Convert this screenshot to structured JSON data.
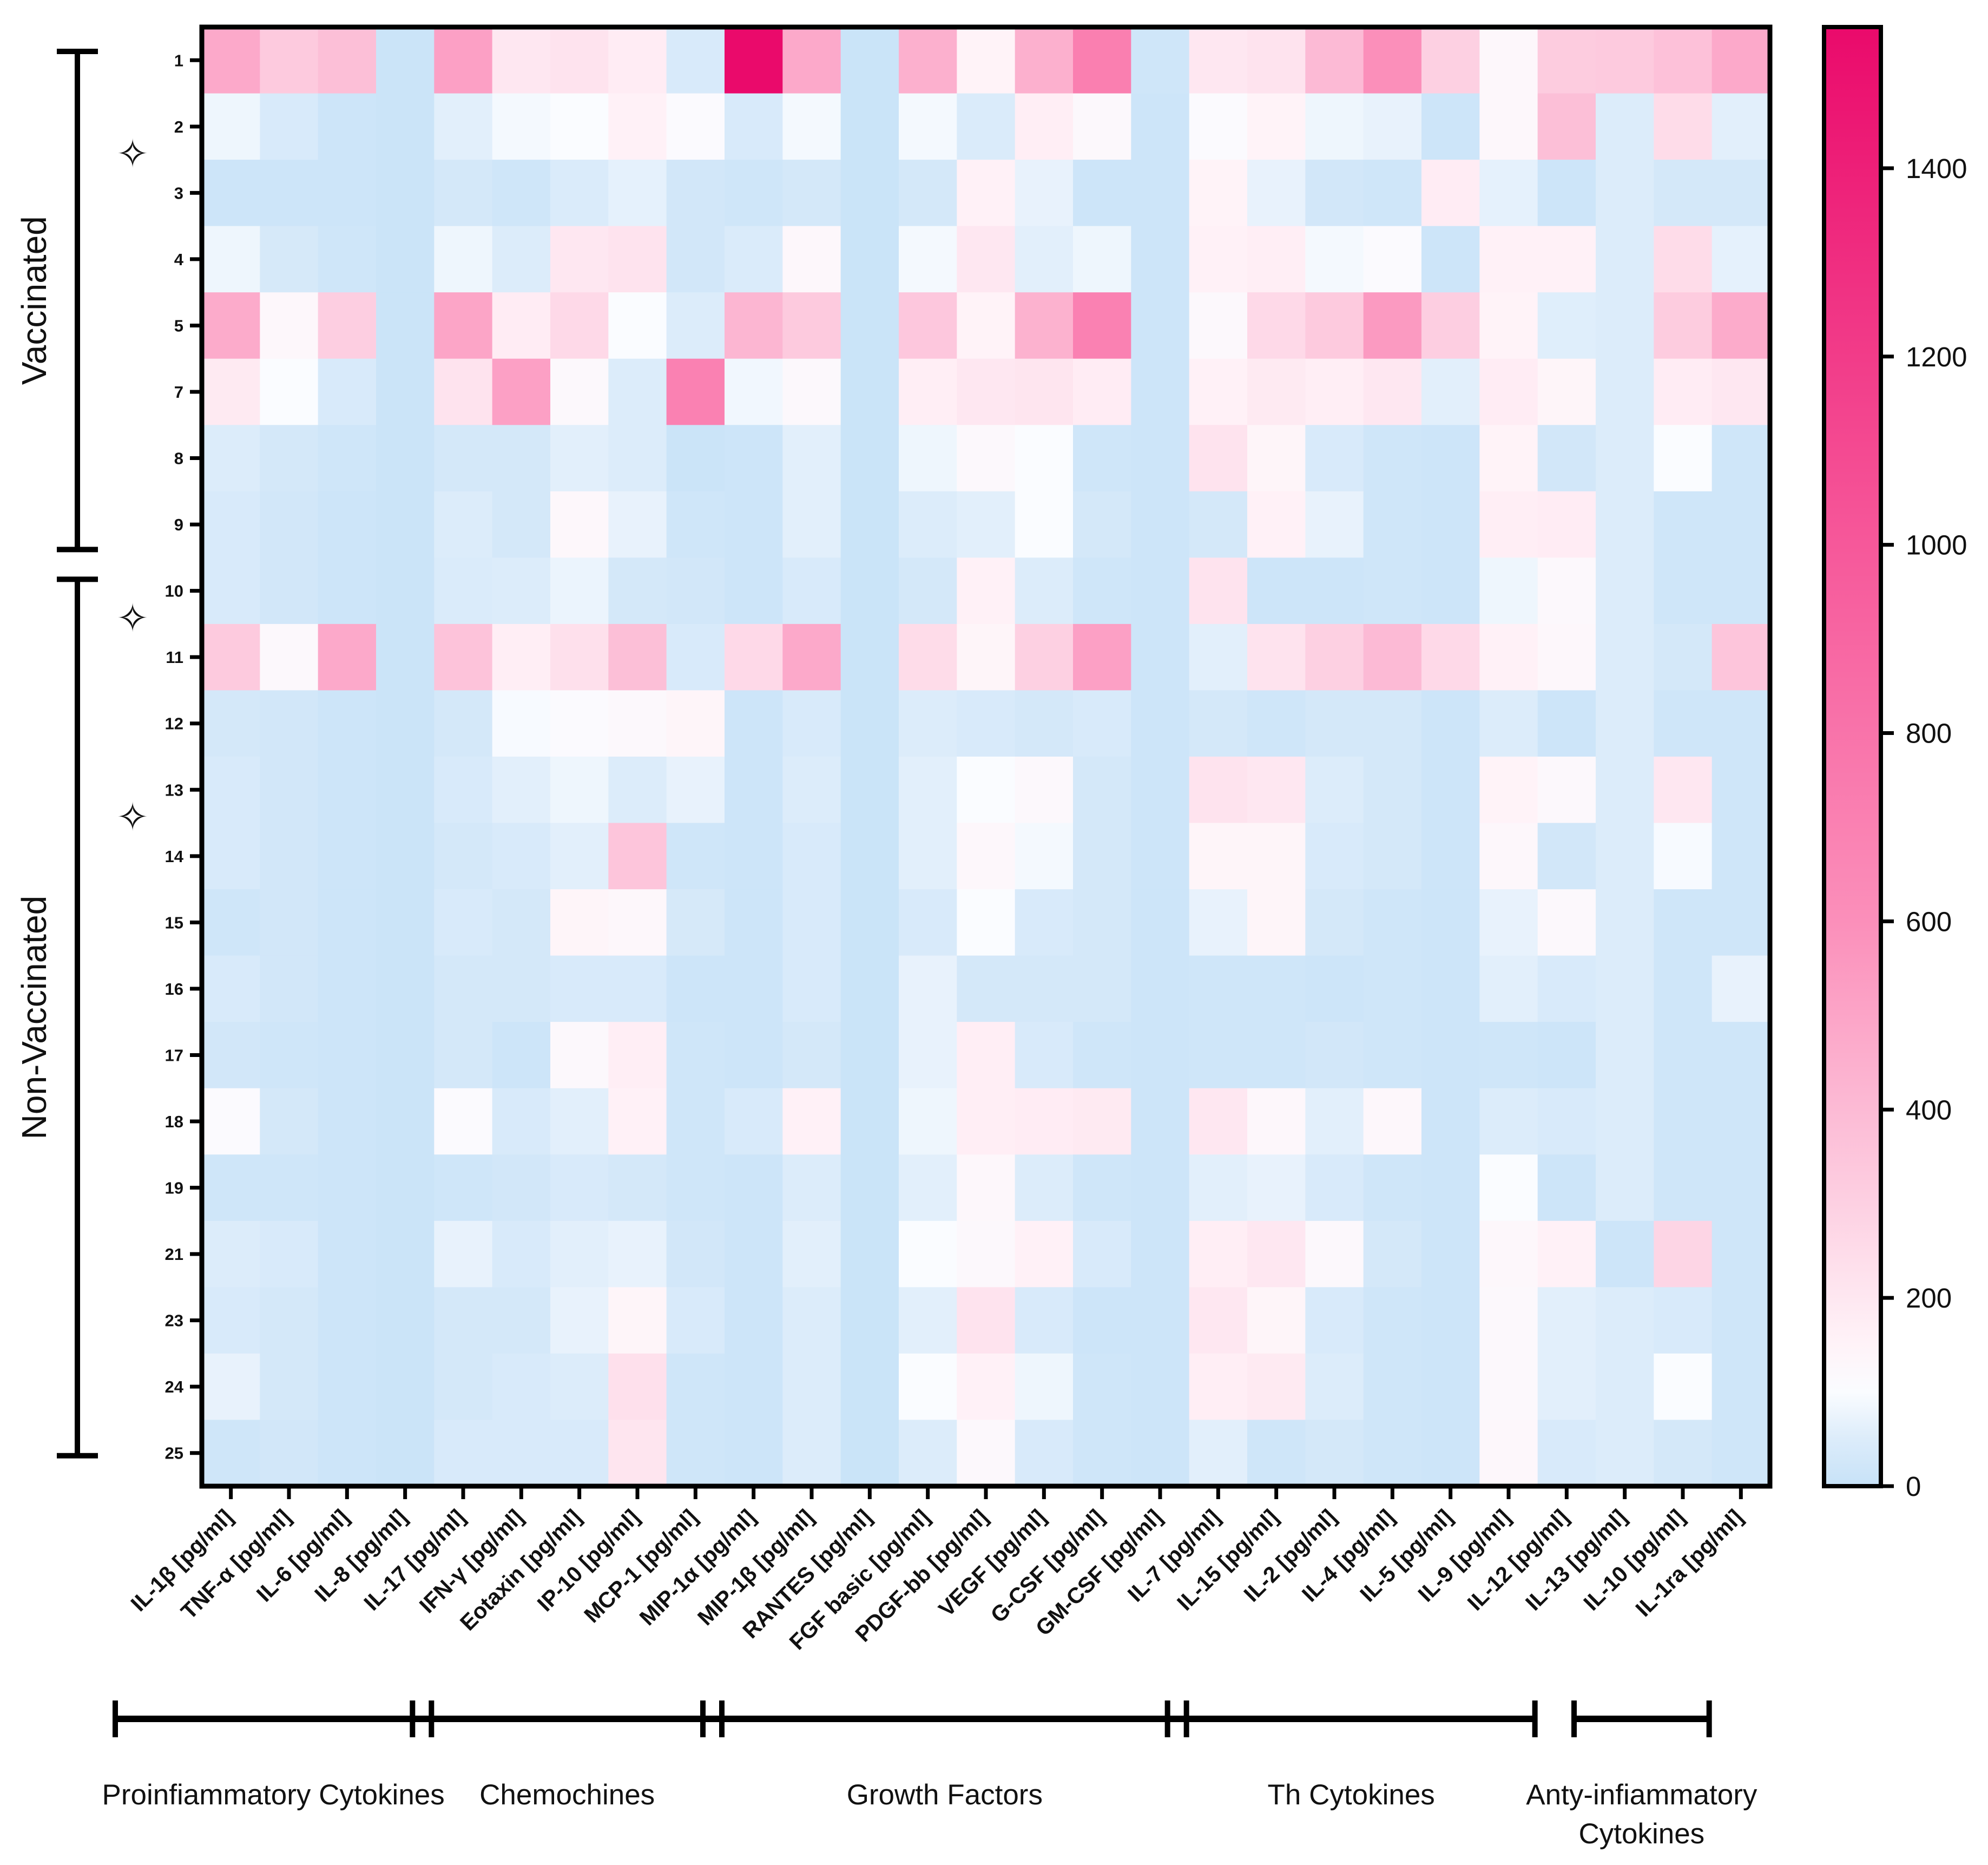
{
  "chart_data": {
    "type": "heatmap",
    "colorbar": {
      "min": 0,
      "max": 1550,
      "ticks": [
        0,
        200,
        400,
        600,
        800,
        1000,
        1200,
        1400
      ],
      "tick_labels": [
        "0",
        "200",
        "400",
        "600",
        "800",
        "1000",
        "1200",
        "1400"
      ],
      "stops": [
        {
          "v": 0,
          "c": "#c7e2f8"
        },
        {
          "v": 50,
          "c": "#dcecfa"
        },
        {
          "v": 100,
          "c": "#fafcff"
        },
        {
          "v": 150,
          "c": "#fff3f8"
        },
        {
          "v": 300,
          "c": "#fdd0e2"
        },
        {
          "v": 600,
          "c": "#fb8fba"
        },
        {
          "v": 1000,
          "c": "#f6589a"
        },
        {
          "v": 1550,
          "c": "#ea0a6b"
        }
      ]
    },
    "rows": [
      "1",
      "2",
      "3",
      "4",
      "5",
      "7",
      "8",
      "9",
      "10",
      "11",
      "12",
      "13",
      "14",
      "15",
      "16",
      "17",
      "18",
      "19",
      "21",
      "23",
      "24",
      "25"
    ],
    "columns": [
      "IL-1β [pg/ml]",
      "TNF-α [pg/ml]",
      "IL-6 [pg/ml]",
      "IL-8 [pg/ml]",
      "IL-17 [pg/ml]",
      "IFN-γ [pg/ml]",
      "Eotaxin [pg/ml]",
      "IP-10 [pg/ml]",
      "MCP-1 [pg/ml]",
      "MIP-1α [pg/ml]",
      "MIP-1β [pg/ml]",
      "RANTES [pg/ml]",
      "FGF basic [pg/ml]",
      "PDGF-bb [pg/ml]",
      "VEGF [pg/ml]",
      "G-CSF [pg/ml]",
      "GM-CSF [pg/ml]",
      "IL-7 [pg/ml]",
      "IL-15 [pg/ml]",
      "IL-2 [pg/ml]",
      "IL-4 [pg/ml]",
      "IL-5 [pg/ml]",
      "IL-9 [pg/ml]",
      "IL-12 [pg/ml]",
      "IL-13 [pg/ml]",
      "IL-10 [pg/ml]",
      "IL-1ra [pg/ml]"
    ],
    "values": [
      [
        480,
        330,
        380,
        10,
        520,
        200,
        220,
        180,
        40,
        1550,
        480,
        8,
        450,
        150,
        450,
        720,
        20,
        200,
        220,
        400,
        600,
        300,
        130,
        320,
        330,
        370,
        480
      ],
      [
        80,
        40,
        15,
        10,
        60,
        90,
        100,
        160,
        110,
        40,
        90,
        8,
        90,
        45,
        170,
        120,
        15,
        110,
        150,
        80,
        70,
        15,
        130,
        380,
        50,
        250,
        60
      ],
      [
        15,
        15,
        15,
        10,
        30,
        20,
        45,
        65,
        25,
        20,
        30,
        8,
        30,
        160,
        70,
        15,
        15,
        150,
        70,
        25,
        20,
        180,
        65,
        15,
        50,
        30,
        30
      ],
      [
        80,
        35,
        20,
        10,
        80,
        50,
        200,
        220,
        25,
        45,
        130,
        8,
        90,
        200,
        60,
        80,
        15,
        160,
        170,
        90,
        110,
        15,
        160,
        160,
        50,
        250,
        65
      ],
      [
        470,
        130,
        310,
        10,
        500,
        180,
        260,
        100,
        50,
        420,
        330,
        8,
        340,
        150,
        440,
        700,
        15,
        120,
        260,
        330,
        550,
        310,
        150,
        55,
        50,
        320,
        470
      ],
      [
        190,
        100,
        40,
        10,
        220,
        520,
        120,
        50,
        700,
        85,
        120,
        8,
        170,
        200,
        210,
        180,
        15,
        160,
        190,
        170,
        200,
        60,
        180,
        140,
        50,
        180,
        200
      ],
      [
        50,
        30,
        20,
        10,
        30,
        30,
        60,
        50,
        10,
        15,
        60,
        8,
        80,
        120,
        100,
        20,
        15,
        220,
        140,
        40,
        20,
        15,
        150,
        25,
        50,
        100,
        20
      ],
      [
        40,
        25,
        15,
        10,
        50,
        30,
        130,
        70,
        20,
        15,
        60,
        8,
        50,
        60,
        100,
        30,
        15,
        30,
        160,
        70,
        20,
        15,
        170,
        180,
        50,
        20,
        20
      ],
      [
        40,
        25,
        15,
        10,
        45,
        50,
        75,
        30,
        25,
        15,
        40,
        8,
        30,
        160,
        50,
        20,
        15,
        220,
        15,
        15,
        20,
        15,
        80,
        120,
        50,
        20,
        20
      ],
      [
        330,
        120,
        480,
        10,
        360,
        170,
        230,
        380,
        40,
        260,
        480,
        8,
        250,
        140,
        300,
        520,
        15,
        60,
        220,
        300,
        400,
        260,
        160,
        130,
        50,
        30,
        350
      ],
      [
        30,
        25,
        15,
        10,
        30,
        95,
        110,
        120,
        140,
        15,
        40,
        8,
        50,
        40,
        30,
        40,
        15,
        30,
        20,
        30,
        30,
        15,
        50,
        15,
        50,
        20,
        20
      ],
      [
        40,
        25,
        15,
        10,
        40,
        60,
        80,
        50,
        70,
        15,
        50,
        8,
        60,
        100,
        120,
        30,
        15,
        220,
        200,
        50,
        30,
        15,
        150,
        120,
        50,
        200,
        20
      ],
      [
        40,
        25,
        15,
        10,
        30,
        40,
        60,
        350,
        20,
        15,
        40,
        8,
        60,
        130,
        90,
        30,
        15,
        140,
        140,
        40,
        30,
        15,
        130,
        25,
        50,
        95,
        20
      ],
      [
        20,
        25,
        15,
        10,
        40,
        30,
        140,
        130,
        35,
        15,
        40,
        8,
        40,
        100,
        40,
        30,
        15,
        70,
        140,
        30,
        20,
        15,
        70,
        120,
        50,
        20,
        20
      ],
      [
        40,
        25,
        15,
        10,
        30,
        30,
        40,
        40,
        15,
        15,
        40,
        8,
        70,
        30,
        30,
        30,
        15,
        20,
        20,
        15,
        20,
        15,
        60,
        40,
        50,
        20,
        70
      ],
      [
        25,
        20,
        15,
        10,
        30,
        15,
        120,
        170,
        20,
        15,
        30,
        8,
        70,
        170,
        40,
        20,
        15,
        20,
        20,
        25,
        20,
        15,
        20,
        15,
        50,
        20,
        20
      ],
      [
        110,
        30,
        15,
        10,
        110,
        40,
        60,
        160,
        20,
        40,
        160,
        8,
        80,
        170,
        180,
        190,
        15,
        200,
        130,
        60,
        130,
        15,
        50,
        40,
        50,
        20,
        20
      ],
      [
        20,
        20,
        15,
        10,
        20,
        25,
        40,
        30,
        20,
        15,
        50,
        8,
        60,
        130,
        50,
        20,
        15,
        60,
        70,
        40,
        20,
        15,
        100,
        15,
        50,
        20,
        20
      ],
      [
        50,
        40,
        15,
        10,
        70,
        40,
        60,
        70,
        25,
        15,
        60,
        8,
        100,
        120,
        160,
        40,
        15,
        170,
        200,
        120,
        30,
        15,
        130,
        160,
        15,
        280,
        20
      ],
      [
        40,
        30,
        15,
        10,
        30,
        30,
        70,
        140,
        40,
        15,
        50,
        8,
        60,
        220,
        40,
        15,
        15,
        200,
        140,
        40,
        20,
        15,
        120,
        60,
        50,
        40,
        20
      ],
      [
        70,
        30,
        15,
        10,
        30,
        40,
        50,
        230,
        20,
        15,
        50,
        8,
        100,
        160,
        80,
        20,
        15,
        170,
        190,
        50,
        20,
        15,
        120,
        60,
        50,
        100,
        20
      ],
      [
        20,
        25,
        15,
        10,
        40,
        40,
        40,
        210,
        20,
        15,
        50,
        8,
        50,
        120,
        40,
        20,
        15,
        60,
        20,
        30,
        20,
        15,
        130,
        40,
        50,
        30,
        20
      ]
    ],
    "xlabel": "",
    "ylabel": ""
  },
  "row_groups": [
    {
      "label": "Vaccinated",
      "from": "1",
      "to": "9"
    },
    {
      "label": "Non-Vaccinated",
      "from": "10",
      "to": "25"
    }
  ],
  "star_marks": [
    "3",
    "11",
    "14"
  ],
  "star_glyph": "✧",
  "column_groups": [
    {
      "label": "Proinfiammatory Cytokines",
      "from": 0,
      "to": 3
    },
    {
      "label": "Chemochines",
      "from": 4,
      "to": 8
    },
    {
      "label": "Growth Factors",
      "from": 9,
      "to": 16
    },
    {
      "label": "Th Cytokines",
      "from": 17,
      "to": 22
    },
    {
      "label": "Anty-infiammatory",
      "label2": "Cytokines",
      "from": 24,
      "to": 25
    }
  ]
}
